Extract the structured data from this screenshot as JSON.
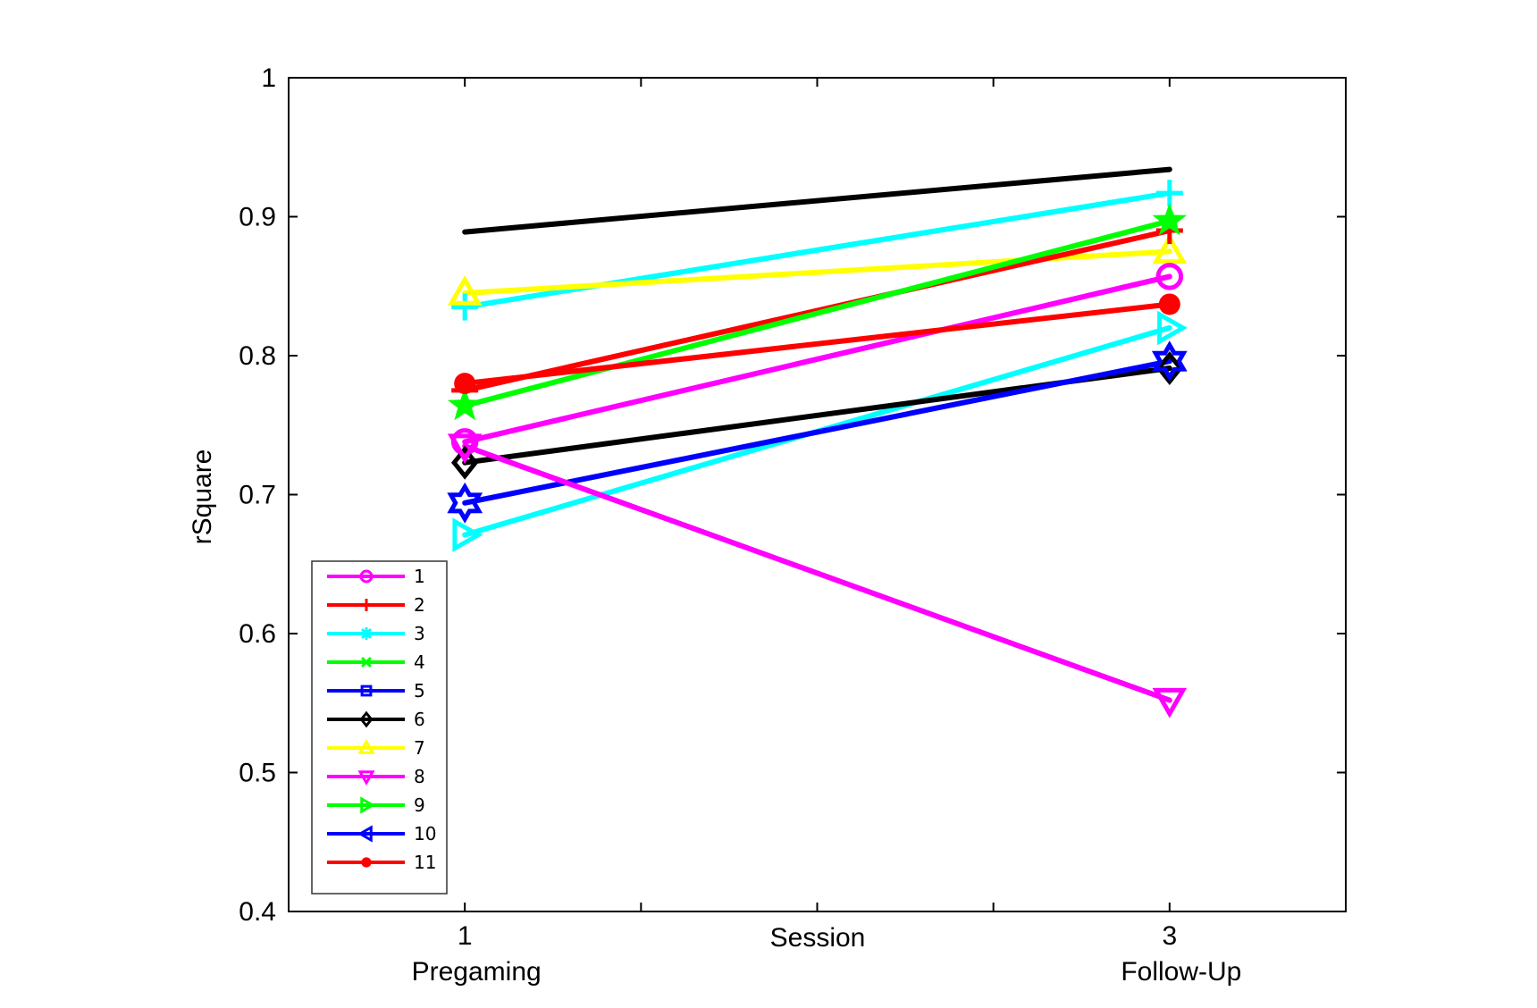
{
  "chart_data": {
    "type": "line",
    "title": "",
    "xlabel": "Session",
    "ylabel": "rSquare",
    "x_ticks": [
      {
        "value": 1,
        "label": "1",
        "sublabel": "Pregaming"
      },
      {
        "value": 3,
        "label": "3",
        "sublabel": "Follow-Up"
      }
    ],
    "xlim": [
      0.5,
      3.5
    ],
    "ylim": [
      0.4,
      1.0
    ],
    "y_ticks": [
      0.4,
      0.5,
      0.6,
      0.7,
      0.8,
      0.9,
      1.0
    ],
    "y_tick_labels": [
      "0.4",
      "0.5",
      "0.6",
      "0.7",
      "0.8",
      "0.9",
      "1"
    ],
    "grid": false,
    "legend_position": "bottom-left",
    "legend": [
      {
        "name": "1",
        "color": "#ff00ff",
        "marker": "circle"
      },
      {
        "name": "2",
        "color": "#ff0000",
        "marker": "plus"
      },
      {
        "name": "3",
        "color": "#00ffff",
        "marker": "asterisk"
      },
      {
        "name": "4",
        "color": "#00ff00",
        "marker": "x"
      },
      {
        "name": "5",
        "color": "#0000ff",
        "marker": "square"
      },
      {
        "name": "6",
        "color": "#000000",
        "marker": "diamond"
      },
      {
        "name": "7",
        "color": "#ffff00",
        "marker": "triangle-up"
      },
      {
        "name": "8",
        "color": "#ff00ff",
        "marker": "triangle-down"
      },
      {
        "name": "9",
        "color": "#00ff00",
        "marker": "triangle-right"
      },
      {
        "name": "10",
        "color": "#0000ff",
        "marker": "triangle-left"
      },
      {
        "name": "11",
        "color": "#ff0000",
        "marker": "filled-circle"
      }
    ],
    "series": [
      {
        "name": "black-line",
        "color": "#000000",
        "marker": "none",
        "x": [
          1,
          3
        ],
        "values": [
          0.889,
          0.934
        ]
      },
      {
        "name": "cyan-plus",
        "color": "#00ffff",
        "marker": "plus",
        "x": [
          1,
          3
        ],
        "values": [
          0.835,
          0.917
        ]
      },
      {
        "name": "yellow-triangle",
        "color": "#ffff00",
        "marker": "triangle-up",
        "x": [
          1,
          3
        ],
        "values": [
          0.845,
          0.875
        ]
      },
      {
        "name": "red-plus",
        "color": "#ff0000",
        "marker": "plus",
        "x": [
          1,
          3
        ],
        "values": [
          0.775,
          0.89
        ]
      },
      {
        "name": "green-star",
        "color": "#00ff00",
        "marker": "star",
        "x": [
          1,
          3
        ],
        "values": [
          0.764,
          0.897
        ]
      },
      {
        "name": "magenta-circle",
        "color": "#ff00ff",
        "marker": "circle",
        "x": [
          1,
          3
        ],
        "values": [
          0.738,
          0.857
        ]
      },
      {
        "name": "red-dot",
        "color": "#ff0000",
        "marker": "filled-circle",
        "x": [
          1,
          3
        ],
        "values": [
          0.78,
          0.837
        ]
      },
      {
        "name": "cyan-triangle-right",
        "color": "#00ffff",
        "marker": "triangle-right",
        "x": [
          1,
          3
        ],
        "values": [
          0.671,
          0.82
        ]
      },
      {
        "name": "black-diamond",
        "color": "#000000",
        "marker": "diamond",
        "x": [
          1,
          3
        ],
        "values": [
          0.723,
          0.791
        ]
      },
      {
        "name": "blue-hexagram",
        "color": "#0000ff",
        "marker": "hexagram",
        "x": [
          1,
          3
        ],
        "values": [
          0.694,
          0.796
        ]
      },
      {
        "name": "magenta-triangle-down",
        "color": "#ff00ff",
        "marker": "triangle-down",
        "x": [
          1,
          3
        ],
        "values": [
          0.735,
          0.552
        ]
      }
    ]
  }
}
